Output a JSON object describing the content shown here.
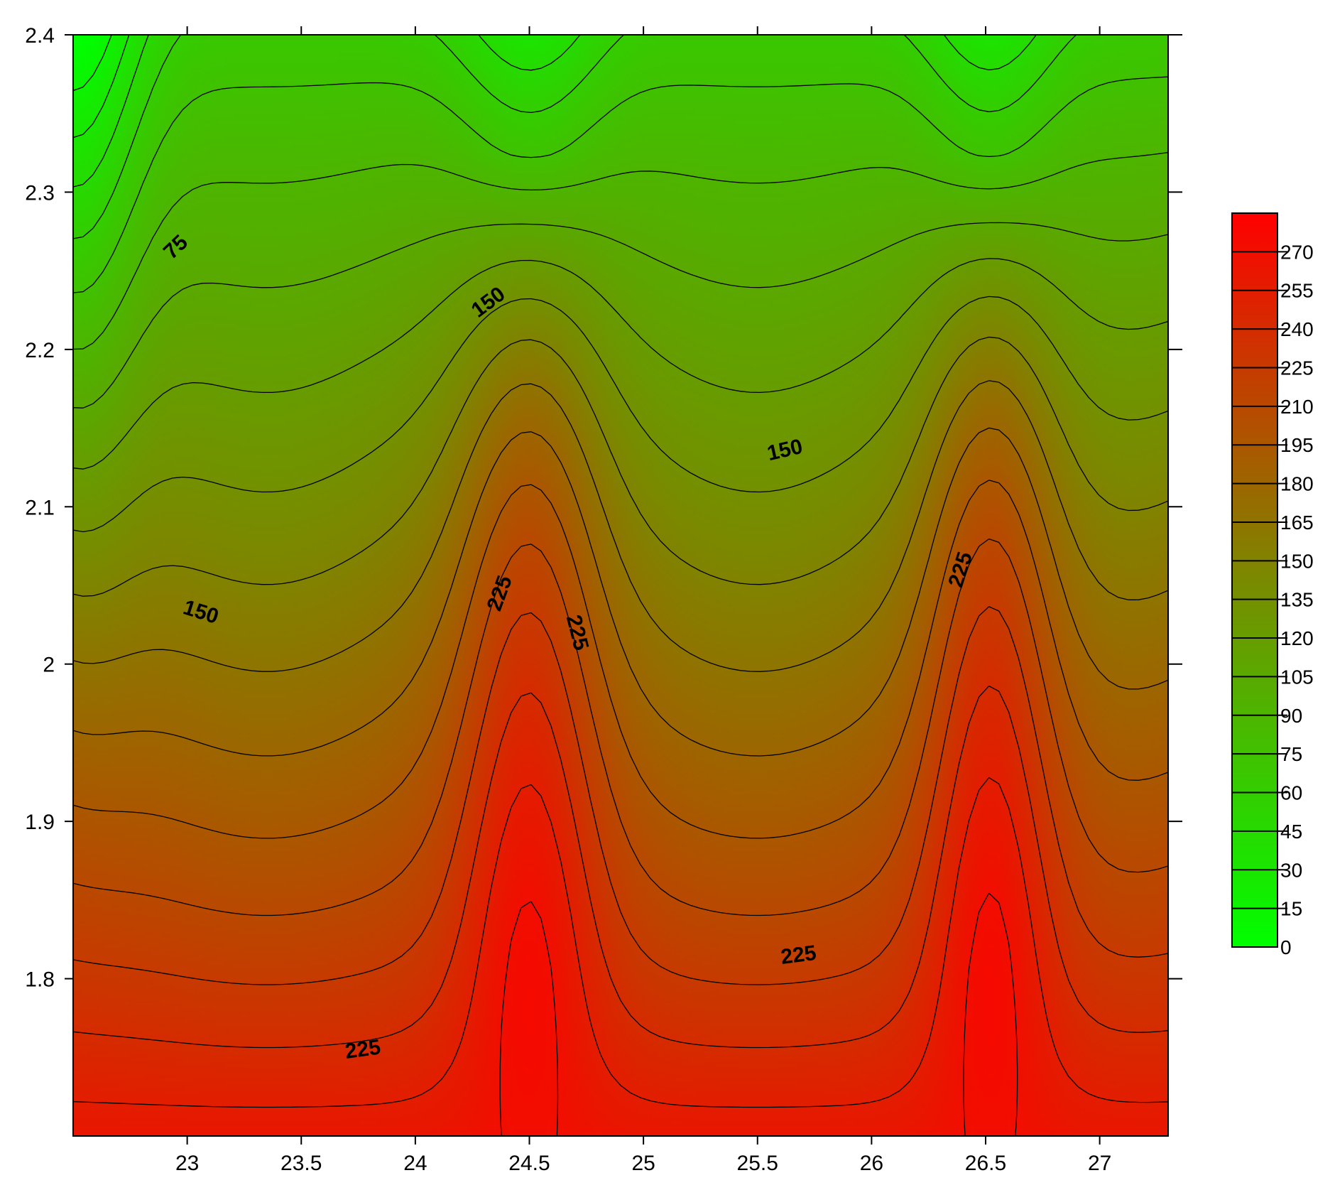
{
  "chart_data": {
    "type": "contour",
    "title": "",
    "xlabel": "",
    "ylabel": "",
    "xlim": [
      22.5,
      27.3
    ],
    "ylim": [
      1.7,
      2.4
    ],
    "x_ticks": [
      "23",
      "23.5",
      "24",
      "24.5",
      "25",
      "25.5",
      "26",
      "26.5",
      "27"
    ],
    "x_tick_values": [
      23,
      23.5,
      24,
      24.5,
      25,
      25.5,
      26,
      26.5,
      27
    ],
    "y_ticks": [
      "1.8",
      "1.9",
      "2",
      "2.1",
      "2.2",
      "2.3",
      "2.4"
    ],
    "y_tick_values": [
      1.8,
      1.9,
      2.0,
      2.1,
      2.2,
      2.3,
      2.4
    ],
    "contour_interval": 15,
    "colorscale": {
      "min": 0,
      "max": 285,
      "low_color": "#00ff00",
      "high_color": "#ff0000",
      "levels": [
        0,
        15,
        30,
        45,
        60,
        75,
        90,
        105,
        120,
        135,
        150,
        165,
        180,
        195,
        210,
        225,
        240,
        255,
        270
      ],
      "labels": [
        "0",
        "15",
        "30",
        "45",
        "60",
        "75",
        "90",
        "105",
        "120",
        "135",
        "150",
        "165",
        "180",
        "195",
        "210",
        "225",
        "240",
        "255",
        "270"
      ]
    },
    "contour_labels": [
      {
        "text": "75",
        "x": 22.95,
        "y": 2.265
      },
      {
        "text": "150",
        "x": 24.32,
        "y": 2.23
      },
      {
        "text": "150",
        "x": 25.62,
        "y": 2.136
      },
      {
        "text": "150",
        "x": 23.06,
        "y": 2.033
      },
      {
        "text": "225",
        "x": 24.37,
        "y": 2.045
      },
      {
        "text": "225",
        "x": 24.71,
        "y": 2.02
      },
      {
        "text": "225",
        "x": 26.39,
        "y": 2.06
      },
      {
        "text": "225",
        "x": 25.68,
        "y": 1.815
      },
      {
        "text": "225",
        "x": 23.77,
        "y": 1.755
      }
    ]
  }
}
